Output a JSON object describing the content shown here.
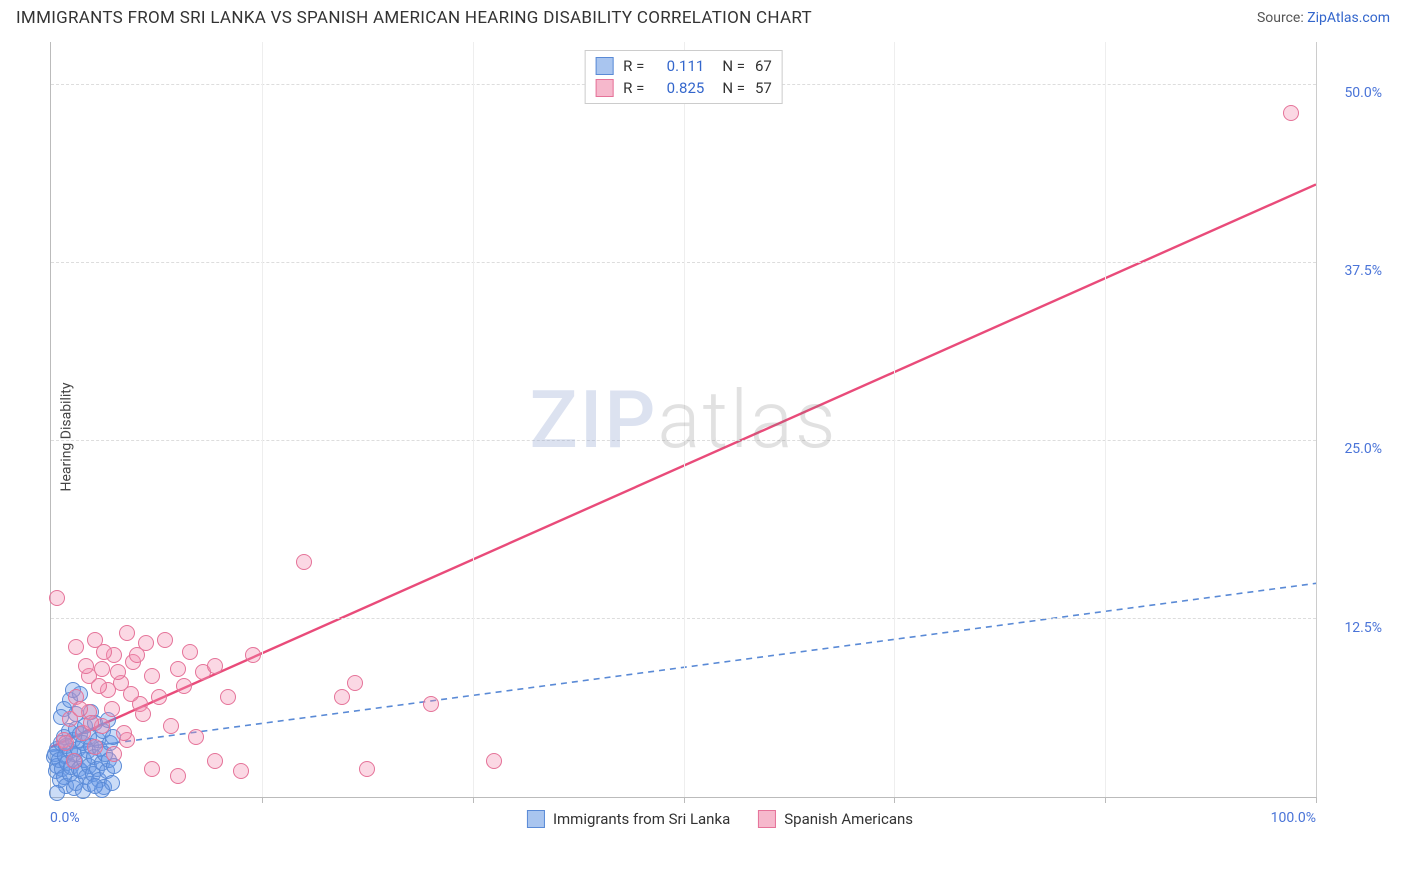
{
  "header": {
    "title": "IMMIGRANTS FROM SRI LANKA VS SPANISH AMERICAN HEARING DISABILITY CORRELATION CHART",
    "source_prefix": "Source: ",
    "source_link": "ZipAtlas.com"
  },
  "watermark": {
    "zip": "ZIP",
    "atlas": "atlas"
  },
  "chart": {
    "type": "scatter",
    "ylabel": "Hearing Disability",
    "background_color": "#ffffff",
    "grid_color": "#dddddd",
    "xlim": [
      0,
      100
    ],
    "ylim": [
      0,
      53
    ],
    "ytick_step": 12.5,
    "ytick_labels": [
      "12.5%",
      "25.0%",
      "37.5%",
      "50.0%"
    ],
    "xtick_positions": [
      0,
      16.67,
      33.33,
      50,
      66.67,
      83.33,
      100
    ],
    "x_min_label": "0.0%",
    "x_max_label": "100.0%",
    "marker_radius": 8,
    "series": [
      {
        "name": "Immigrants from Sri Lanka",
        "color_fill": "rgba(107,156,232,0.35)",
        "color_stroke": "#5a8ad6",
        "swatch_fill": "#a9c5ef",
        "swatch_stroke": "#5a8ad6",
        "r_value": "0.111",
        "n_value": "67",
        "regression": {
          "y_at_x0": 3.2,
          "y_at_x100": 15.0,
          "dashed": true,
          "color": "#5a8ad6",
          "width": 1.6,
          "solid_end_x": 5
        },
        "points": [
          [
            0.2,
            2.8
          ],
          [
            0.3,
            3.0
          ],
          [
            0.4,
            1.8
          ],
          [
            0.5,
            2.2
          ],
          [
            0.5,
            3.4
          ],
          [
            0.6,
            2.6
          ],
          [
            0.7,
            1.2
          ],
          [
            0.8,
            3.8
          ],
          [
            0.9,
            2.0
          ],
          [
            1.0,
            4.2
          ],
          [
            1.0,
            1.4
          ],
          [
            1.1,
            2.9
          ],
          [
            1.2,
            3.6
          ],
          [
            1.2,
            0.8
          ],
          [
            1.3,
            2.4
          ],
          [
            1.4,
            4.6
          ],
          [
            1.5,
            1.6
          ],
          [
            1.5,
            3.2
          ],
          [
            1.6,
            2.1
          ],
          [
            1.7,
            4.0
          ],
          [
            1.8,
            0.6
          ],
          [
            1.8,
            3.0
          ],
          [
            1.9,
            2.5
          ],
          [
            2.0,
            4.8
          ],
          [
            2.0,
            1.0
          ],
          [
            2.1,
            3.4
          ],
          [
            2.2,
            2.0
          ],
          [
            2.3,
            4.4
          ],
          [
            2.4,
            1.8
          ],
          [
            2.5,
            3.8
          ],
          [
            2.5,
            0.4
          ],
          [
            2.6,
            2.6
          ],
          [
            2.7,
            5.0
          ],
          [
            2.8,
            1.4
          ],
          [
            2.9,
            3.2
          ],
          [
            3.0,
            2.2
          ],
          [
            3.0,
            4.2
          ],
          [
            3.1,
            0.9
          ],
          [
            3.2,
            3.6
          ],
          [
            3.3,
            1.6
          ],
          [
            3.4,
            2.8
          ],
          [
            3.5,
            5.2
          ],
          [
            3.6,
            2.0
          ],
          [
            3.7,
            4.0
          ],
          [
            3.8,
            1.2
          ],
          [
            3.9,
            3.4
          ],
          [
            4.0,
            2.4
          ],
          [
            4.1,
            4.6
          ],
          [
            4.2,
            0.7
          ],
          [
            4.3,
            3.0
          ],
          [
            4.4,
            1.8
          ],
          [
            4.5,
            5.4
          ],
          [
            4.6,
            2.6
          ],
          [
            4.7,
            3.8
          ],
          [
            4.8,
            1.0
          ],
          [
            4.9,
            4.2
          ],
          [
            5.0,
            2.2
          ],
          [
            1.0,
            6.2
          ],
          [
            1.5,
            6.8
          ],
          [
            2.3,
            7.2
          ],
          [
            0.8,
            5.6
          ],
          [
            3.2,
            6.0
          ],
          [
            2.0,
            5.8
          ],
          [
            1.7,
            7.5
          ],
          [
            0.5,
            0.3
          ],
          [
            4.0,
            0.5
          ],
          [
            3.5,
            0.8
          ]
        ]
      },
      {
        "name": "Spanish Americans",
        "color_fill": "rgba(244,143,177,0.35)",
        "color_stroke": "#e57399",
        "swatch_fill": "#f6b8cc",
        "swatch_stroke": "#e57399",
        "r_value": "0.825",
        "n_value": "57",
        "regression": {
          "y_at_x0": 3.5,
          "y_at_x100": 43.0,
          "dashed": false,
          "color": "#e94b7a",
          "width": 2.4
        },
        "points": [
          [
            0.5,
            14.0
          ],
          [
            1.0,
            4.0
          ],
          [
            1.5,
            5.5
          ],
          [
            2.0,
            7.0
          ],
          [
            2.0,
            10.5
          ],
          [
            2.5,
            4.5
          ],
          [
            3.0,
            8.5
          ],
          [
            3.0,
            6.0
          ],
          [
            3.5,
            11.0
          ],
          [
            3.5,
            3.5
          ],
          [
            4.0,
            9.0
          ],
          [
            4.0,
            5.0
          ],
          [
            4.5,
            7.5
          ],
          [
            5.0,
            10.0
          ],
          [
            5.0,
            3.0
          ],
          [
            5.5,
            8.0
          ],
          [
            6.0,
            11.5
          ],
          [
            6.0,
            4.0
          ],
          [
            6.5,
            9.5
          ],
          [
            7.0,
            6.5
          ],
          [
            7.5,
            10.8
          ],
          [
            8.0,
            8.5
          ],
          [
            8.0,
            2.0
          ],
          [
            8.5,
            7.0
          ],
          [
            9.0,
            11.0
          ],
          [
            9.5,
            5.0
          ],
          [
            10.0,
            9.0
          ],
          [
            10.0,
            1.5
          ],
          [
            10.5,
            7.8
          ],
          [
            11.0,
            10.2
          ],
          [
            11.5,
            4.2
          ],
          [
            12.0,
            8.8
          ],
          [
            13.0,
            9.2
          ],
          [
            13.0,
            2.5
          ],
          [
            14.0,
            7.0
          ],
          [
            15.0,
            1.8
          ],
          [
            16.0,
            10.0
          ],
          [
            20.0,
            16.5
          ],
          [
            23.0,
            7.0
          ],
          [
            24.0,
            8.0
          ],
          [
            25.0,
            2.0
          ],
          [
            30.0,
            6.5
          ],
          [
            35.0,
            2.5
          ],
          [
            98.0,
            48.0
          ],
          [
            1.2,
            3.8
          ],
          [
            1.8,
            2.5
          ],
          [
            2.3,
            6.2
          ],
          [
            2.8,
            9.2
          ],
          [
            3.2,
            5.2
          ],
          [
            3.8,
            7.8
          ],
          [
            4.2,
            10.2
          ],
          [
            4.8,
            6.2
          ],
          [
            5.3,
            8.8
          ],
          [
            5.8,
            4.5
          ],
          [
            6.3,
            7.2
          ],
          [
            6.8,
            10.0
          ],
          [
            7.3,
            5.8
          ]
        ]
      }
    ],
    "legend_top": {
      "r_label": "R =",
      "n_label": "N ="
    }
  }
}
